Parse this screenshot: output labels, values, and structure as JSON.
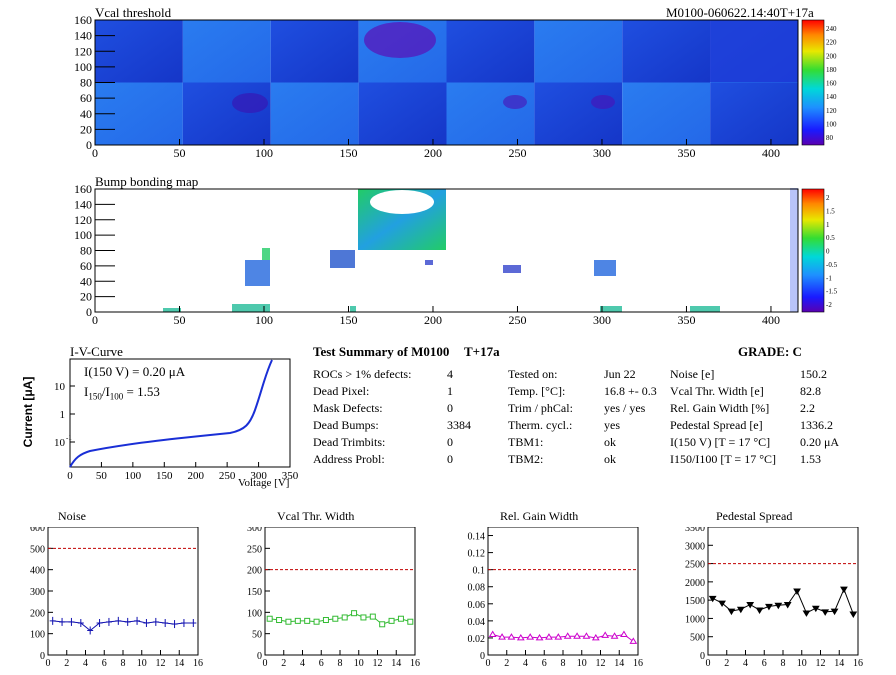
{
  "vcal_map": {
    "title": "Vcal threshold",
    "module_tag": "M0100-060622.14:40T+17a",
    "x_ticks": [
      0,
      50,
      100,
      150,
      200,
      250,
      300,
      350,
      400
    ],
    "y_ticks": [
      0,
      20,
      40,
      60,
      80,
      100,
      120,
      140,
      160
    ],
    "xlim": [
      0,
      416
    ],
    "ylim": [
      0,
      160
    ],
    "palette_ticks": [
      "240",
      "220",
      "200",
      "180",
      "160",
      "140",
      "120",
      "100",
      "80"
    ]
  },
  "bump_map": {
    "title": "Bump bonding map",
    "x_ticks": [
      0,
      50,
      100,
      150,
      200,
      250,
      300,
      350,
      400
    ],
    "y_ticks": [
      0,
      20,
      40,
      60,
      80,
      100,
      120,
      140,
      160
    ],
    "xlim": [
      0,
      416
    ],
    "ylim": [
      0,
      160
    ],
    "palette_ticks": [
      "2",
      "1.5",
      "1",
      "0.5",
      "0",
      "-0.5",
      "-1",
      "-1.5",
      "-2"
    ]
  },
  "iv_curve": {
    "title": "I-V-Curve",
    "ylabel": "Current [μA]",
    "xlabel": "Voltage [V]",
    "x_ticks": [
      "0",
      "50",
      "100",
      "150",
      "200",
      "250",
      "300",
      "350"
    ],
    "y_ticks": [
      "10",
      "1",
      "10"
    ],
    "y_tick_sup": [
      "",
      "",
      "-1"
    ],
    "annot1": "I(150 V) = 0.20 μA",
    "annot2_pre": "I",
    "annot2_sub1": "150",
    "annot2_mid": "/I",
    "annot2_sub2": "100",
    "annot2_post": " =  1.53"
  },
  "summary": {
    "heading": "Test Summary of M0100",
    "temp_tag": "T+17a",
    "grade": "GRADE:  C",
    "col1": [
      {
        "label": "ROCs > 1% defects:",
        "value": "4"
      },
      {
        "label": "Dead Pixel:",
        "value": "1"
      },
      {
        "label": "Mask Defects:",
        "value": "0"
      },
      {
        "label": "Dead Bumps:",
        "value": "3384"
      },
      {
        "label": "Dead Trimbits:",
        "value": "0"
      },
      {
        "label": "Address Probl:",
        "value": "0"
      }
    ],
    "col2": [
      {
        "label": "Tested on:",
        "value": "Jun 22"
      },
      {
        "label": "Temp. [°C]:",
        "value": "16.8 +- 0.3"
      },
      {
        "label": "Trim / phCal:",
        "value": "yes / yes"
      },
      {
        "label": "Therm. cycl.:",
        "value": "yes"
      },
      {
        "label": "TBM1:",
        "value": "ok"
      },
      {
        "label": "TBM2:",
        "value": "ok"
      }
    ],
    "col3": [
      {
        "label": "Noise [e]",
        "value": "150.2"
      },
      {
        "label": "Vcal Thr. Width [e]",
        "value": "82.8"
      },
      {
        "label": "Rel. Gain Width [%]",
        "value": "2.2"
      },
      {
        "label": "Pedestal Spread [e]",
        "value": "1336.2"
      },
      {
        "label": "I(150 V) [T = 17 °C]",
        "value": "0.20 μA"
      },
      {
        "label": "I150/I100  [T = 17 °C]",
        "value": "1.53"
      }
    ]
  },
  "colors": {
    "noise": "#1010b0",
    "vcal": "#33bb33",
    "gain": "#cc00cc",
    "pedestal": "#000000",
    "limit": "#c00000"
  },
  "chart_data": [
    {
      "type": "scatter",
      "title": "Noise",
      "x": [
        0,
        1,
        2,
        3,
        4,
        5,
        6,
        7,
        8,
        9,
        10,
        11,
        12,
        13,
        14,
        15
      ],
      "values": [
        160,
        155,
        155,
        150,
        115,
        150,
        155,
        160,
        155,
        160,
        150,
        155,
        150,
        145,
        150,
        150
      ],
      "ylim": [
        0,
        600
      ],
      "y_ticks": [
        0,
        100,
        200,
        300,
        400,
        500,
        600
      ],
      "x_ticks": [
        0,
        2,
        4,
        6,
        8,
        10,
        12,
        14,
        16
      ],
      "limit": 500,
      "marker": "cross"
    },
    {
      "type": "scatter",
      "title": "Vcal Thr. Width",
      "x": [
        0,
        1,
        2,
        3,
        4,
        5,
        6,
        7,
        8,
        9,
        10,
        11,
        12,
        13,
        14,
        15
      ],
      "values": [
        85,
        82,
        78,
        80,
        80,
        78,
        82,
        85,
        88,
        98,
        88,
        90,
        72,
        80,
        85,
        78
      ],
      "ylim": [
        0,
        300
      ],
      "y_ticks": [
        0,
        50,
        100,
        150,
        200,
        250,
        300
      ],
      "x_ticks": [
        0,
        2,
        4,
        6,
        8,
        10,
        12,
        14,
        16
      ],
      "limit": 200,
      "marker": "square"
    },
    {
      "type": "scatter",
      "title": "Rel. Gain Width",
      "x": [
        0,
        1,
        2,
        3,
        4,
        5,
        6,
        7,
        8,
        9,
        10,
        11,
        12,
        13,
        14,
        15
      ],
      "values": [
        0.024,
        0.021,
        0.021,
        0.02,
        0.021,
        0.02,
        0.021,
        0.021,
        0.022,
        0.022,
        0.022,
        0.02,
        0.023,
        0.022,
        0.024,
        0.016
      ],
      "ylim": [
        0,
        0.15
      ],
      "y_ticks": [
        0,
        0.02,
        0.04,
        0.06,
        0.08,
        0.1,
        0.12,
        0.14
      ],
      "x_ticks": [
        0,
        2,
        4,
        6,
        8,
        10,
        12,
        14,
        16
      ],
      "limit": 0.1,
      "marker": "triangle"
    },
    {
      "type": "scatter",
      "title": "Pedestal Spread",
      "x": [
        0,
        1,
        2,
        3,
        4,
        5,
        6,
        7,
        8,
        9,
        10,
        11,
        12,
        13,
        14,
        15
      ],
      "values": [
        1550,
        1420,
        1200,
        1250,
        1380,
        1230,
        1330,
        1360,
        1380,
        1750,
        1150,
        1280,
        1180,
        1200,
        1800,
        1120
      ],
      "ylim": [
        0,
        3500
      ],
      "y_ticks": [
        0,
        500,
        1000,
        1500,
        2000,
        2500,
        3000,
        3500
      ],
      "x_ticks": [
        0,
        2,
        4,
        6,
        8,
        10,
        12,
        14,
        16
      ],
      "limit": 2500,
      "marker": "triangle-down"
    }
  ]
}
